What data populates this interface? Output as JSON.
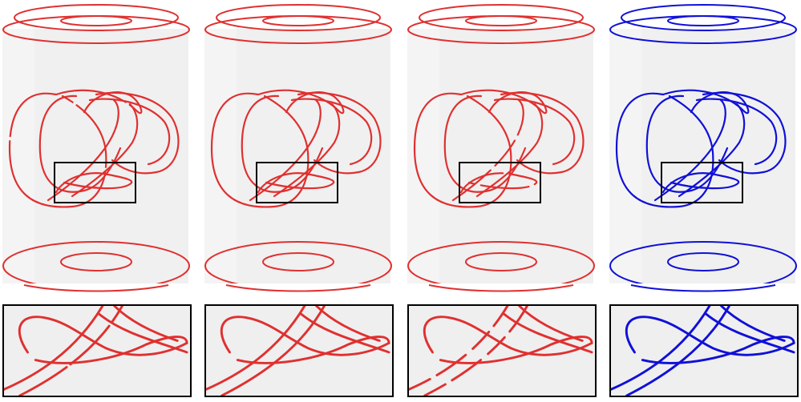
{
  "figure": {
    "panels": [
      {
        "id": "p1",
        "color": "#e03030",
        "variant": "broken"
      },
      {
        "id": "p2",
        "color": "#e03030",
        "variant": "clean"
      },
      {
        "id": "p3",
        "color": "#e03030",
        "variant": "gapped"
      },
      {
        "id": "p4",
        "color": "#1010d8",
        "variant": "clean"
      }
    ]
  }
}
